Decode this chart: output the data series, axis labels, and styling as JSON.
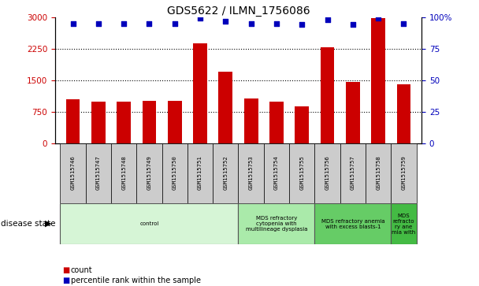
{
  "title": "GDS5622 / ILMN_1756086",
  "samples": [
    "GSM1515746",
    "GSM1515747",
    "GSM1515748",
    "GSM1515749",
    "GSM1515750",
    "GSM1515751",
    "GSM1515752",
    "GSM1515753",
    "GSM1515754",
    "GSM1515755",
    "GSM1515756",
    "GSM1515757",
    "GSM1515758",
    "GSM1515759"
  ],
  "counts": [
    1050,
    980,
    990,
    1010,
    1000,
    2380,
    1700,
    1070,
    990,
    870,
    2280,
    1450,
    2980,
    1400
  ],
  "percentile_ranks": [
    95,
    95,
    95,
    95,
    95,
    99,
    97,
    95,
    95,
    94,
    98,
    94,
    99,
    95
  ],
  "ylim_left": [
    0,
    3000
  ],
  "ylim_right": [
    0,
    100
  ],
  "yticks_left": [
    0,
    750,
    1500,
    2250,
    3000
  ],
  "ytick_labels_left": [
    "0",
    "750",
    "1500",
    "2250",
    "3000"
  ],
  "yticks_right": [
    0,
    25,
    50,
    75,
    100
  ],
  "ytick_labels_right": [
    "0",
    "25",
    "50",
    "75",
    "100%"
  ],
  "bar_color": "#cc0000",
  "dot_color": "#0000bb",
  "disease_groups": [
    {
      "label": "control",
      "start": 0,
      "end": 7,
      "color": "#d6f5d6"
    },
    {
      "label": "MDS refractory\ncytopenia with\nmultilineage dysplasia",
      "start": 7,
      "end": 10,
      "color": "#aaeaaa"
    },
    {
      "label": "MDS refractory anemia\nwith excess blasts-1",
      "start": 10,
      "end": 13,
      "color": "#66cc66"
    },
    {
      "label": "MDS\nrefracto\nry ane\nmia with",
      "start": 13,
      "end": 14,
      "color": "#44bb44"
    }
  ],
  "legend_count_label": "count",
  "legend_pct_label": "percentile rank within the sample",
  "disease_state_label": "disease state",
  "left_ylabel_color": "#cc0000",
  "right_ylabel_color": "#0000bb",
  "bg_color": "#ffffff",
  "plot_bg_color": "#ffffff",
  "sample_band_color": "#cccccc"
}
